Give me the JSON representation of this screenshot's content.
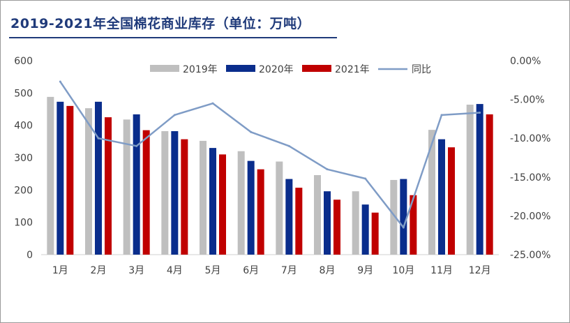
{
  "title": "2019-2021年全国棉花商业库存（单位：万吨）",
  "colors": {
    "title": "#1f3a7a",
    "s2019": "#bfbfbf",
    "s2020": "#0a2d8c",
    "s2021": "#c00000",
    "ratio": "#7f9cc6",
    "axis_text": "#404040"
  },
  "chart_data": {
    "type": "bar",
    "title": "2019-2021年全国棉花商业库存（单位：万吨）",
    "categories": [
      "1月",
      "2月",
      "3月",
      "4月",
      "5月",
      "6月",
      "7月",
      "8月",
      "9月",
      "10月",
      "11月",
      "12月"
    ],
    "series": [
      {
        "name": "2019年",
        "type": "bar",
        "axis": "left",
        "color": "#bfbfbf",
        "values": [
          488,
          453,
          418,
          382,
          352,
          320,
          288,
          246,
          196,
          231,
          386,
          464
        ]
      },
      {
        "name": "2020年",
        "type": "bar",
        "axis": "left",
        "color": "#0a2d8c",
        "values": [
          473,
          473,
          434,
          382,
          330,
          290,
          234,
          196,
          155,
          234,
          357,
          466
        ]
      },
      {
        "name": "2021年",
        "type": "bar",
        "axis": "left",
        "color": "#c00000",
        "values": [
          460,
          425,
          385,
          357,
          310,
          264,
          207,
          170,
          130,
          184,
          332,
          434
        ]
      },
      {
        "name": "同比",
        "type": "line",
        "axis": "right",
        "color": "#7f9cc6",
        "values": [
          -2.7,
          -10.0,
          -11.0,
          -7.0,
          -5.5,
          -9.2,
          -11.0,
          -14.0,
          -15.2,
          -21.5,
          -7.0,
          -6.7
        ]
      }
    ],
    "left_axis": {
      "min": 0,
      "max": 600,
      "step": 100,
      "ticks": [
        "0",
        "100",
        "200",
        "300",
        "400",
        "500",
        "600"
      ]
    },
    "right_axis": {
      "min": -25,
      "max": 0,
      "step": 5,
      "ticks": [
        "-25.00%",
        "-20.00%",
        "-15.00%",
        "-10.00%",
        "-5.00%",
        "0.00%"
      ]
    },
    "legend_position": "top",
    "grid": false
  }
}
